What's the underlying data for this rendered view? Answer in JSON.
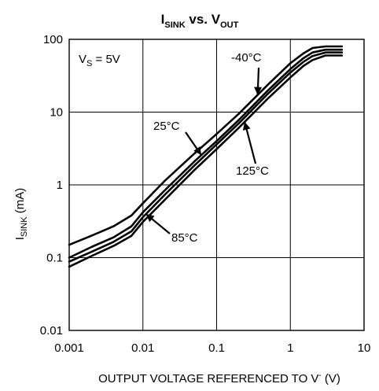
{
  "chart_data": {
    "type": "line",
    "title": {
      "main": "I",
      "main_sub": "SINK",
      "vs": " vs. V",
      "vs_sub": "OUT"
    },
    "xlabel": "OUTPUT VOLTAGE REFERENCED TO V",
    "xlabel_sup": "-",
    "xlabel_unit": " (V)",
    "ylabel_main": "I",
    "ylabel_sub": "SINK",
    "ylabel_unit": " (mA)",
    "x_scale": "log",
    "y_scale": "log",
    "xlim": [
      0.001,
      10
    ],
    "ylim": [
      0.01,
      100
    ],
    "x_ticks": [
      "0.001",
      "0.01",
      "0.1",
      "1",
      "10"
    ],
    "y_ticks": [
      "100",
      "10",
      "1",
      "0.1",
      "0.01"
    ],
    "grid": true,
    "condition": {
      "main": "V",
      "sub": "S",
      "rest": " = 5V"
    },
    "series": [
      {
        "name": "-40°C",
        "x": [
          0.001,
          0.002,
          0.004,
          0.007,
          0.01,
          0.02,
          0.05,
          0.1,
          0.2,
          0.5,
          1,
          1.5,
          2,
          3,
          5
        ],
        "y": [
          0.15,
          0.2,
          0.27,
          0.38,
          0.56,
          1.15,
          2.7,
          5,
          9.5,
          24,
          47,
          64,
          76,
          80,
          80
        ]
      },
      {
        "name": "25°C",
        "x": [
          0.001,
          0.002,
          0.004,
          0.007,
          0.01,
          0.02,
          0.05,
          0.1,
          0.2,
          0.5,
          1,
          1.5,
          2,
          3,
          5
        ],
        "y": [
          0.1,
          0.14,
          0.19,
          0.27,
          0.42,
          0.85,
          2.1,
          4,
          7.8,
          20,
          39,
          55,
          66,
          72,
          72
        ]
      },
      {
        "name": "85°C",
        "x": [
          0.001,
          0.002,
          0.004,
          0.007,
          0.01,
          0.02,
          0.05,
          0.1,
          0.2,
          0.5,
          1,
          1.5,
          2,
          3,
          5
        ],
        "y": [
          0.088,
          0.12,
          0.165,
          0.23,
          0.36,
          0.74,
          1.85,
          3.6,
          7,
          18,
          35,
          49,
          59,
          66,
          66
        ]
      },
      {
        "name": "125°C",
        "x": [
          0.001,
          0.002,
          0.004,
          0.007,
          0.01,
          0.02,
          0.05,
          0.1,
          0.2,
          0.5,
          1,
          1.5,
          2,
          3,
          5
        ],
        "y": [
          0.075,
          0.105,
          0.145,
          0.2,
          0.31,
          0.63,
          1.6,
          3.1,
          6.1,
          15.5,
          30,
          43,
          52,
          60,
          60
        ]
      }
    ],
    "annotations": [
      {
        "text": "-40°C",
        "series": "-40°C"
      },
      {
        "text": "25°C",
        "series": "25°C"
      },
      {
        "text": "125°C",
        "series": "125°C"
      },
      {
        "text": "85°C",
        "series": "85°C"
      }
    ]
  }
}
